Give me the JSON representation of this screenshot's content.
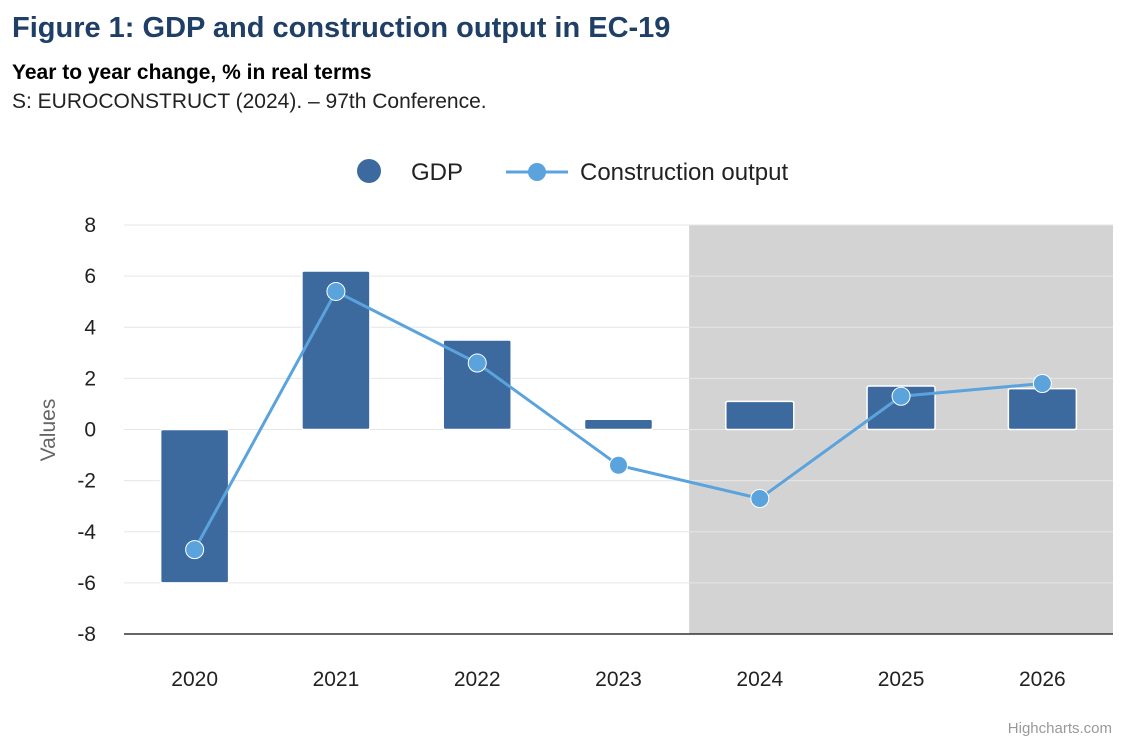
{
  "header": {
    "title": "Figure 1: GDP and construction output in EC-19",
    "subtitle": "Year to year change, % in real terms",
    "source": "S: EUROCONSTRUCT (2024). – 97th Conference."
  },
  "credits": "Highcharts.com",
  "colors": {
    "gdp": "#3d6a9e",
    "construction": "#5ba3dd",
    "forecast_band": "#d3d3d3",
    "title": "#1f3f66"
  },
  "chart_data": {
    "type": "bar",
    "categories": [
      "2020",
      "2021",
      "2022",
      "2023",
      "2024",
      "2025",
      "2026"
    ],
    "series": [
      {
        "name": "GDP",
        "type": "bar",
        "values": [
          -6.0,
          6.2,
          3.5,
          0.4,
          1.1,
          1.7,
          1.6
        ]
      },
      {
        "name": "Construction output",
        "type": "line",
        "values": [
          -4.7,
          5.4,
          2.6,
          -1.4,
          -2.7,
          1.3,
          1.8
        ]
      }
    ],
    "ylabel": "Values",
    "xlabel": "",
    "ylim": [
      -8,
      8
    ],
    "yticks": [
      8,
      6,
      4,
      2,
      0,
      -2,
      -4,
      -6,
      -8
    ],
    "grid": true,
    "legend_position": "top-center",
    "shaded_categories": [
      "2024",
      "2025",
      "2026"
    ]
  }
}
